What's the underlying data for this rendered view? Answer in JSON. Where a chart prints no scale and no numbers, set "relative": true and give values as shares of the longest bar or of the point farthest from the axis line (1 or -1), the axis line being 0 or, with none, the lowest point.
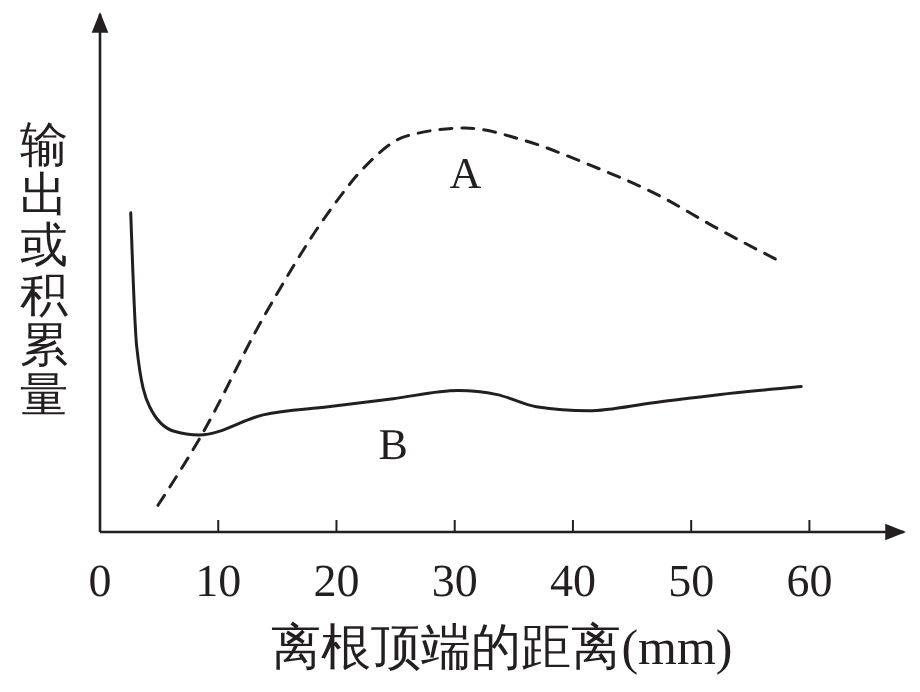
{
  "chart_data": {
    "type": "line",
    "relative": true,
    "xlabel": "离根顶端的距离(mm)",
    "ylabel": "输出或积累量",
    "xlim": [
      0,
      68
    ],
    "xticks": [
      0,
      10,
      20,
      30,
      40,
      50,
      60
    ],
    "grid": false,
    "marker": "none",
    "series": [
      {
        "name": "A",
        "color": "#231f20",
        "line_style": "dashed",
        "x": [
          4.9,
          8.4,
          13.8,
          19.3,
          22.6,
          25.9,
          30.9,
          35.8,
          41.3,
          46.8,
          52.3,
          57.5
        ],
        "values": [
          0.066,
          0.23,
          0.53,
          0.79,
          0.91,
          0.98,
          1,
          0.97,
          0.91,
          0.84,
          0.75,
          0.67
        ]
      },
      {
        "name": "B",
        "color": "#231f20",
        "line_style": "solid",
        "x": [
          2.6,
          3.1,
          4.2,
          6.2,
          8.4,
          13.8,
          19.3,
          24.8,
          30.3,
          33.6,
          36.9,
          41.3,
          46.8,
          52.3,
          59.3
        ],
        "values": [
          0.79,
          0.46,
          0.31,
          0.25,
          0.24,
          0.29,
          0.31,
          0.33,
          0.35,
          0.34,
          0.31,
          0.3,
          0.32,
          0.34,
          0.36
        ]
      }
    ]
  }
}
